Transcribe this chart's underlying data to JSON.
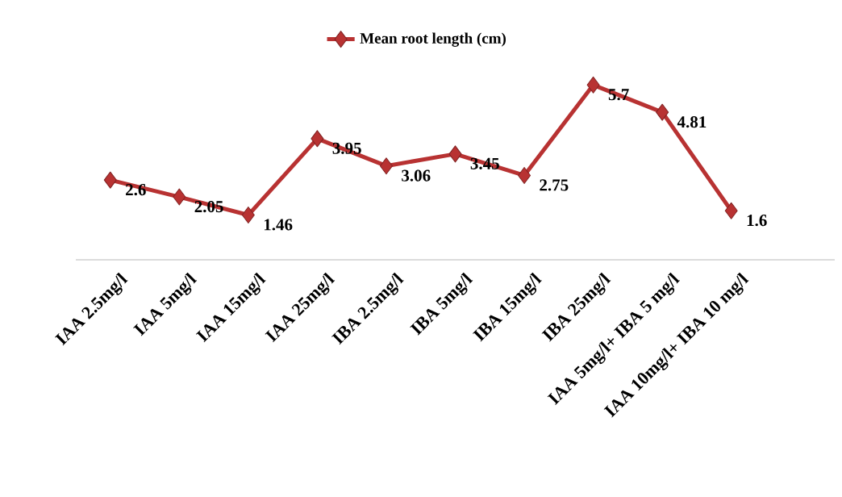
{
  "chart_data": {
    "type": "line",
    "categories": [
      "IAA 2.5mg/l",
      "IAA 5mg/l",
      "IAA 15mg/l",
      "IAA 25mg/l",
      "IBA 2.5mg/l",
      "IBA 5mg/l",
      "IBA 15mg/l",
      "IBA 25mg/l",
      "IAA 5mg/l+ IBA 5 mg/l",
      "IAA 10mg/l+ IBA 10 mg/l"
    ],
    "series": [
      {
        "name": "Mean root length (cm)",
        "color": "#b83232",
        "values": [
          2.6,
          2.05,
          1.46,
          3.95,
          3.06,
          3.45,
          2.75,
          5.7,
          4.81,
          1.6
        ]
      }
    ],
    "tick_labels": "x",
    "data_labels": true,
    "legend": "top",
    "marker": "diamond",
    "line_style": "solid"
  }
}
